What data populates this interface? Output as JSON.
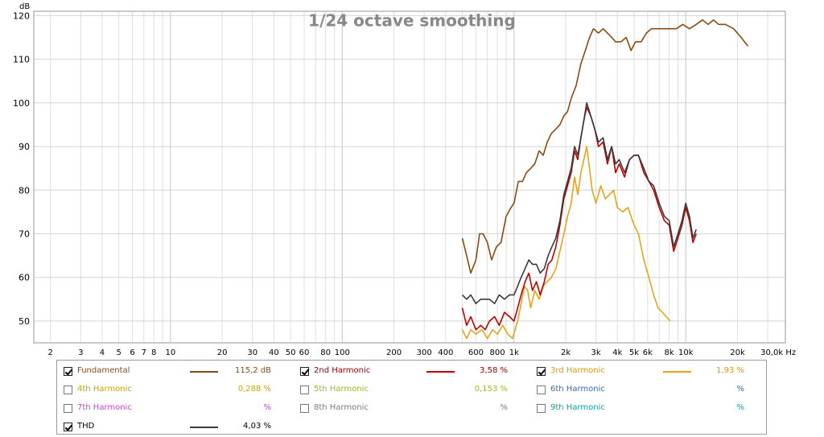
{
  "chart_data": {
    "type": "line",
    "title": "1/24 octave smoothing",
    "ylabel": "dB",
    "xlabel": "Hz",
    "x_scale": "log",
    "xlim": [
      1.6,
      38000
    ],
    "ylim": [
      45,
      121
    ],
    "grid": true,
    "y_ticks": [
      {
        "value": 120,
        "label": "120"
      },
      {
        "value": 110,
        "label": "110"
      },
      {
        "value": 100,
        "label": "100"
      },
      {
        "value": 90,
        "label": "90"
      },
      {
        "value": 80,
        "label": "80"
      },
      {
        "value": 70,
        "label": "70"
      },
      {
        "value": 60,
        "label": "60"
      },
      {
        "value": 50,
        "label": "50"
      }
    ],
    "x_ticks": [
      {
        "value": 2,
        "label": "2"
      },
      {
        "value": 3,
        "label": "3"
      },
      {
        "value": 4,
        "label": "4"
      },
      {
        "value": 5,
        "label": "5"
      },
      {
        "value": 6,
        "label": "6"
      },
      {
        "value": 7,
        "label": "7"
      },
      {
        "value": 8,
        "label": "8"
      },
      {
        "value": 10,
        "label": "10"
      },
      {
        "value": 20,
        "label": "20"
      },
      {
        "value": 30,
        "label": "30"
      },
      {
        "value": 40,
        "label": "40"
      },
      {
        "value": 50,
        "label": "50"
      },
      {
        "value": 60,
        "label": "60"
      },
      {
        "value": 80,
        "label": "80"
      },
      {
        "value": 100,
        "label": "100"
      },
      {
        "value": 200,
        "label": "200"
      },
      {
        "value": 300,
        "label": "300"
      },
      {
        "value": 400,
        "label": "400"
      },
      {
        "value": 600,
        "label": "600"
      },
      {
        "value": 800,
        "label": "800"
      },
      {
        "value": 1000,
        "label": "1k"
      },
      {
        "value": 2000,
        "label": "2k"
      },
      {
        "value": 3000,
        "label": "3k"
      },
      {
        "value": 4000,
        "label": "4k"
      },
      {
        "value": 5000,
        "label": "5k"
      },
      {
        "value": 6000,
        "label": "6k"
      },
      {
        "value": 8000,
        "label": "8k"
      },
      {
        "value": 10000,
        "label": "10k"
      },
      {
        "value": 20000,
        "label": "20k"
      },
      {
        "value": 30000,
        "label": "30,0k Hz"
      }
    ],
    "series": [
      {
        "name": "Fundamental",
        "color": "#8b4a14",
        "points": [
          [
            500,
            69
          ],
          [
            530,
            65
          ],
          [
            560,
            61
          ],
          [
            600,
            64
          ],
          [
            630,
            70
          ],
          [
            660,
            70
          ],
          [
            700,
            68
          ],
          [
            740,
            64
          ],
          [
            790,
            67
          ],
          [
            840,
            68
          ],
          [
            900,
            74
          ],
          [
            960,
            76
          ],
          [
            1000,
            77
          ],
          [
            1060,
            82
          ],
          [
            1120,
            82
          ],
          [
            1180,
            84
          ],
          [
            1250,
            85
          ],
          [
            1320,
            86
          ],
          [
            1400,
            89
          ],
          [
            1480,
            88
          ],
          [
            1560,
            91
          ],
          [
            1650,
            93
          ],
          [
            1750,
            94
          ],
          [
            1850,
            95
          ],
          [
            1950,
            97
          ],
          [
            2050,
            98
          ],
          [
            2150,
            101
          ],
          [
            2300,
            104
          ],
          [
            2450,
            109
          ],
          [
            2600,
            112
          ],
          [
            2750,
            115
          ],
          [
            2900,
            117
          ],
          [
            3100,
            116
          ],
          [
            3300,
            117
          ],
          [
            3500,
            116
          ],
          [
            3700,
            115
          ],
          [
            3900,
            114
          ],
          [
            4200,
            114
          ],
          [
            4500,
            115
          ],
          [
            4800,
            112
          ],
          [
            5100,
            114
          ],
          [
            5500,
            114
          ],
          [
            5900,
            116
          ],
          [
            6300,
            117
          ],
          [
            6800,
            117
          ],
          [
            7400,
            117
          ],
          [
            8000,
            117
          ],
          [
            8800,
            117
          ],
          [
            9600,
            118
          ],
          [
            10500,
            117
          ],
          [
            11500,
            118
          ],
          [
            12500,
            119
          ],
          [
            13500,
            118
          ],
          [
            14500,
            119
          ],
          [
            15500,
            118
          ],
          [
            17000,
            118
          ],
          [
            19000,
            117
          ],
          [
            21000,
            115
          ],
          [
            23000,
            113
          ]
        ]
      },
      {
        "name": "2nd Harmonic",
        "color": "#c00000",
        "points": [
          [
            500,
            53
          ],
          [
            530,
            49
          ],
          [
            560,
            51
          ],
          [
            600,
            48
          ],
          [
            640,
            49
          ],
          [
            680,
            48
          ],
          [
            720,
            50
          ],
          [
            770,
            51
          ],
          [
            820,
            49
          ],
          [
            880,
            52
          ],
          [
            940,
            51
          ],
          [
            1000,
            50
          ],
          [
            1050,
            53
          ],
          [
            1100,
            56
          ],
          [
            1160,
            59
          ],
          [
            1220,
            61
          ],
          [
            1280,
            57
          ],
          [
            1350,
            59
          ],
          [
            1420,
            56
          ],
          [
            1500,
            59
          ],
          [
            1580,
            63
          ],
          [
            1660,
            64
          ],
          [
            1750,
            67
          ],
          [
            1850,
            72
          ],
          [
            1950,
            78
          ],
          [
            2050,
            81
          ],
          [
            2150,
            84
          ],
          [
            2250,
            89
          ],
          [
            2350,
            87
          ],
          [
            2450,
            92
          ],
          [
            2550,
            96
          ],
          [
            2650,
            99
          ],
          [
            2800,
            97
          ],
          [
            2950,
            94
          ],
          [
            3100,
            90
          ],
          [
            3300,
            91
          ],
          [
            3500,
            86
          ],
          [
            3700,
            90
          ],
          [
            3900,
            84
          ],
          [
            4100,
            86
          ],
          [
            4400,
            83
          ],
          [
            4700,
            87
          ],
          [
            5000,
            88
          ],
          [
            5300,
            88
          ],
          [
            5700,
            84
          ],
          [
            6100,
            82
          ],
          [
            6500,
            80
          ],
          [
            7000,
            76
          ],
          [
            7500,
            73
          ],
          [
            8000,
            72
          ],
          [
            8500,
            66
          ],
          [
            9000,
            69
          ],
          [
            9500,
            72
          ],
          [
            10000,
            76
          ],
          [
            10500,
            73
          ],
          [
            11000,
            68
          ],
          [
            11500,
            70
          ]
        ]
      },
      {
        "name": "3rd Harmonic",
        "color": "#e8a319",
        "points": [
          [
            500,
            48
          ],
          [
            530,
            46
          ],
          [
            560,
            48
          ],
          [
            600,
            47
          ],
          [
            650,
            48
          ],
          [
            700,
            46
          ],
          [
            750,
            48
          ],
          [
            800,
            47
          ],
          [
            860,
            49
          ],
          [
            920,
            47
          ],
          [
            980,
            46
          ],
          [
            1050,
            50
          ],
          [
            1100,
            54
          ],
          [
            1150,
            58
          ],
          [
            1200,
            57
          ],
          [
            1250,
            53
          ],
          [
            1320,
            57
          ],
          [
            1400,
            55
          ],
          [
            1480,
            58
          ],
          [
            1560,
            59
          ],
          [
            1650,
            60
          ],
          [
            1750,
            62
          ],
          [
            1850,
            66
          ],
          [
            1950,
            70
          ],
          [
            2050,
            74
          ],
          [
            2150,
            77
          ],
          [
            2250,
            83
          ],
          [
            2350,
            79
          ],
          [
            2450,
            84
          ],
          [
            2550,
            87
          ],
          [
            2650,
            90
          ],
          [
            2750,
            85
          ],
          [
            2850,
            80
          ],
          [
            3000,
            77
          ],
          [
            3200,
            81
          ],
          [
            3400,
            78
          ],
          [
            3600,
            79
          ],
          [
            3800,
            80
          ],
          [
            4000,
            76
          ],
          [
            4300,
            75
          ],
          [
            4600,
            76
          ],
          [
            5000,
            72
          ],
          [
            5300,
            70
          ],
          [
            5700,
            64
          ],
          [
            6100,
            60
          ],
          [
            6500,
            56
          ],
          [
            6900,
            53
          ],
          [
            7300,
            52
          ],
          [
            7700,
            51
          ],
          [
            8100,
            50
          ]
        ]
      },
      {
        "name": "THD",
        "color": "#3a3a3a",
        "points": [
          [
            500,
            56
          ],
          [
            530,
            55
          ],
          [
            560,
            56
          ],
          [
            600,
            54
          ],
          [
            640,
            55
          ],
          [
            680,
            55
          ],
          [
            720,
            55
          ],
          [
            770,
            54
          ],
          [
            820,
            56
          ],
          [
            880,
            55
          ],
          [
            940,
            56
          ],
          [
            1000,
            56
          ],
          [
            1050,
            58
          ],
          [
            1100,
            60
          ],
          [
            1160,
            62
          ],
          [
            1220,
            64
          ],
          [
            1280,
            63
          ],
          [
            1350,
            63
          ],
          [
            1420,
            61
          ],
          [
            1500,
            62
          ],
          [
            1580,
            65
          ],
          [
            1660,
            67
          ],
          [
            1750,
            69
          ],
          [
            1850,
            73
          ],
          [
            1950,
            79
          ],
          [
            2050,
            82
          ],
          [
            2150,
            85
          ],
          [
            2250,
            90
          ],
          [
            2350,
            88
          ],
          [
            2450,
            92
          ],
          [
            2550,
            96
          ],
          [
            2650,
            100
          ],
          [
            2800,
            97
          ],
          [
            2950,
            94
          ],
          [
            3100,
            91
          ],
          [
            3300,
            92
          ],
          [
            3500,
            87
          ],
          [
            3700,
            90
          ],
          [
            3900,
            86
          ],
          [
            4100,
            87
          ],
          [
            4400,
            84
          ],
          [
            4700,
            87
          ],
          [
            5000,
            88
          ],
          [
            5300,
            88
          ],
          [
            5700,
            85
          ],
          [
            6100,
            82
          ],
          [
            6500,
            81
          ],
          [
            7000,
            77
          ],
          [
            7500,
            74
          ],
          [
            8000,
            73
          ],
          [
            8500,
            67
          ],
          [
            9000,
            70
          ],
          [
            9500,
            73
          ],
          [
            10000,
            77
          ],
          [
            10500,
            74
          ],
          [
            11000,
            69
          ],
          [
            11500,
            71
          ]
        ]
      }
    ]
  },
  "legend": [
    {
      "label": "Fundamental",
      "checked": true,
      "label_color": "#8b4a14",
      "line_color": "#8b4a14",
      "show_line": true,
      "value": "115,2 dB"
    },
    {
      "label": "2nd Harmonic",
      "checked": true,
      "label_color": "#a00000",
      "line_color": "#c00000",
      "show_line": true,
      "value": "3,58 %"
    },
    {
      "label": "3rd Harmonic",
      "checked": true,
      "label_color": "#d49a10",
      "line_color": "#e8a319",
      "show_line": true,
      "value": "1,93 %"
    },
    {
      "label": "4th Harmonic",
      "checked": false,
      "label_color": "#c9a400",
      "line_color": "#c9a400",
      "show_line": false,
      "value": "0,288 %"
    },
    {
      "label": "5th Harmonic",
      "checked": false,
      "label_color": "#9ab82a",
      "line_color": "#9ab82a",
      "show_line": false,
      "value": "0,153 %"
    },
    {
      "label": "6th Harmonic",
      "checked": false,
      "label_color": "#3a6ab0",
      "line_color": "#3a6ab0",
      "show_line": false,
      "value": "%"
    },
    {
      "label": "7th Harmonic",
      "checked": false,
      "label_color": "#d040d0",
      "line_color": "#d040d0",
      "show_line": false,
      "value": "%"
    },
    {
      "label": "8th Harmonic",
      "checked": false,
      "label_color": "#7a7a7a",
      "line_color": "#7a7a7a",
      "show_line": false,
      "value": "%"
    },
    {
      "label": "9th Harmonic",
      "checked": false,
      "label_color": "#10a0a0",
      "line_color": "#10a0a0",
      "show_line": false,
      "value": "%"
    },
    {
      "label": "THD",
      "checked": true,
      "label_color": "#000000",
      "line_color": "#3a3a3a",
      "show_line": true,
      "value": "4,03 %"
    }
  ]
}
